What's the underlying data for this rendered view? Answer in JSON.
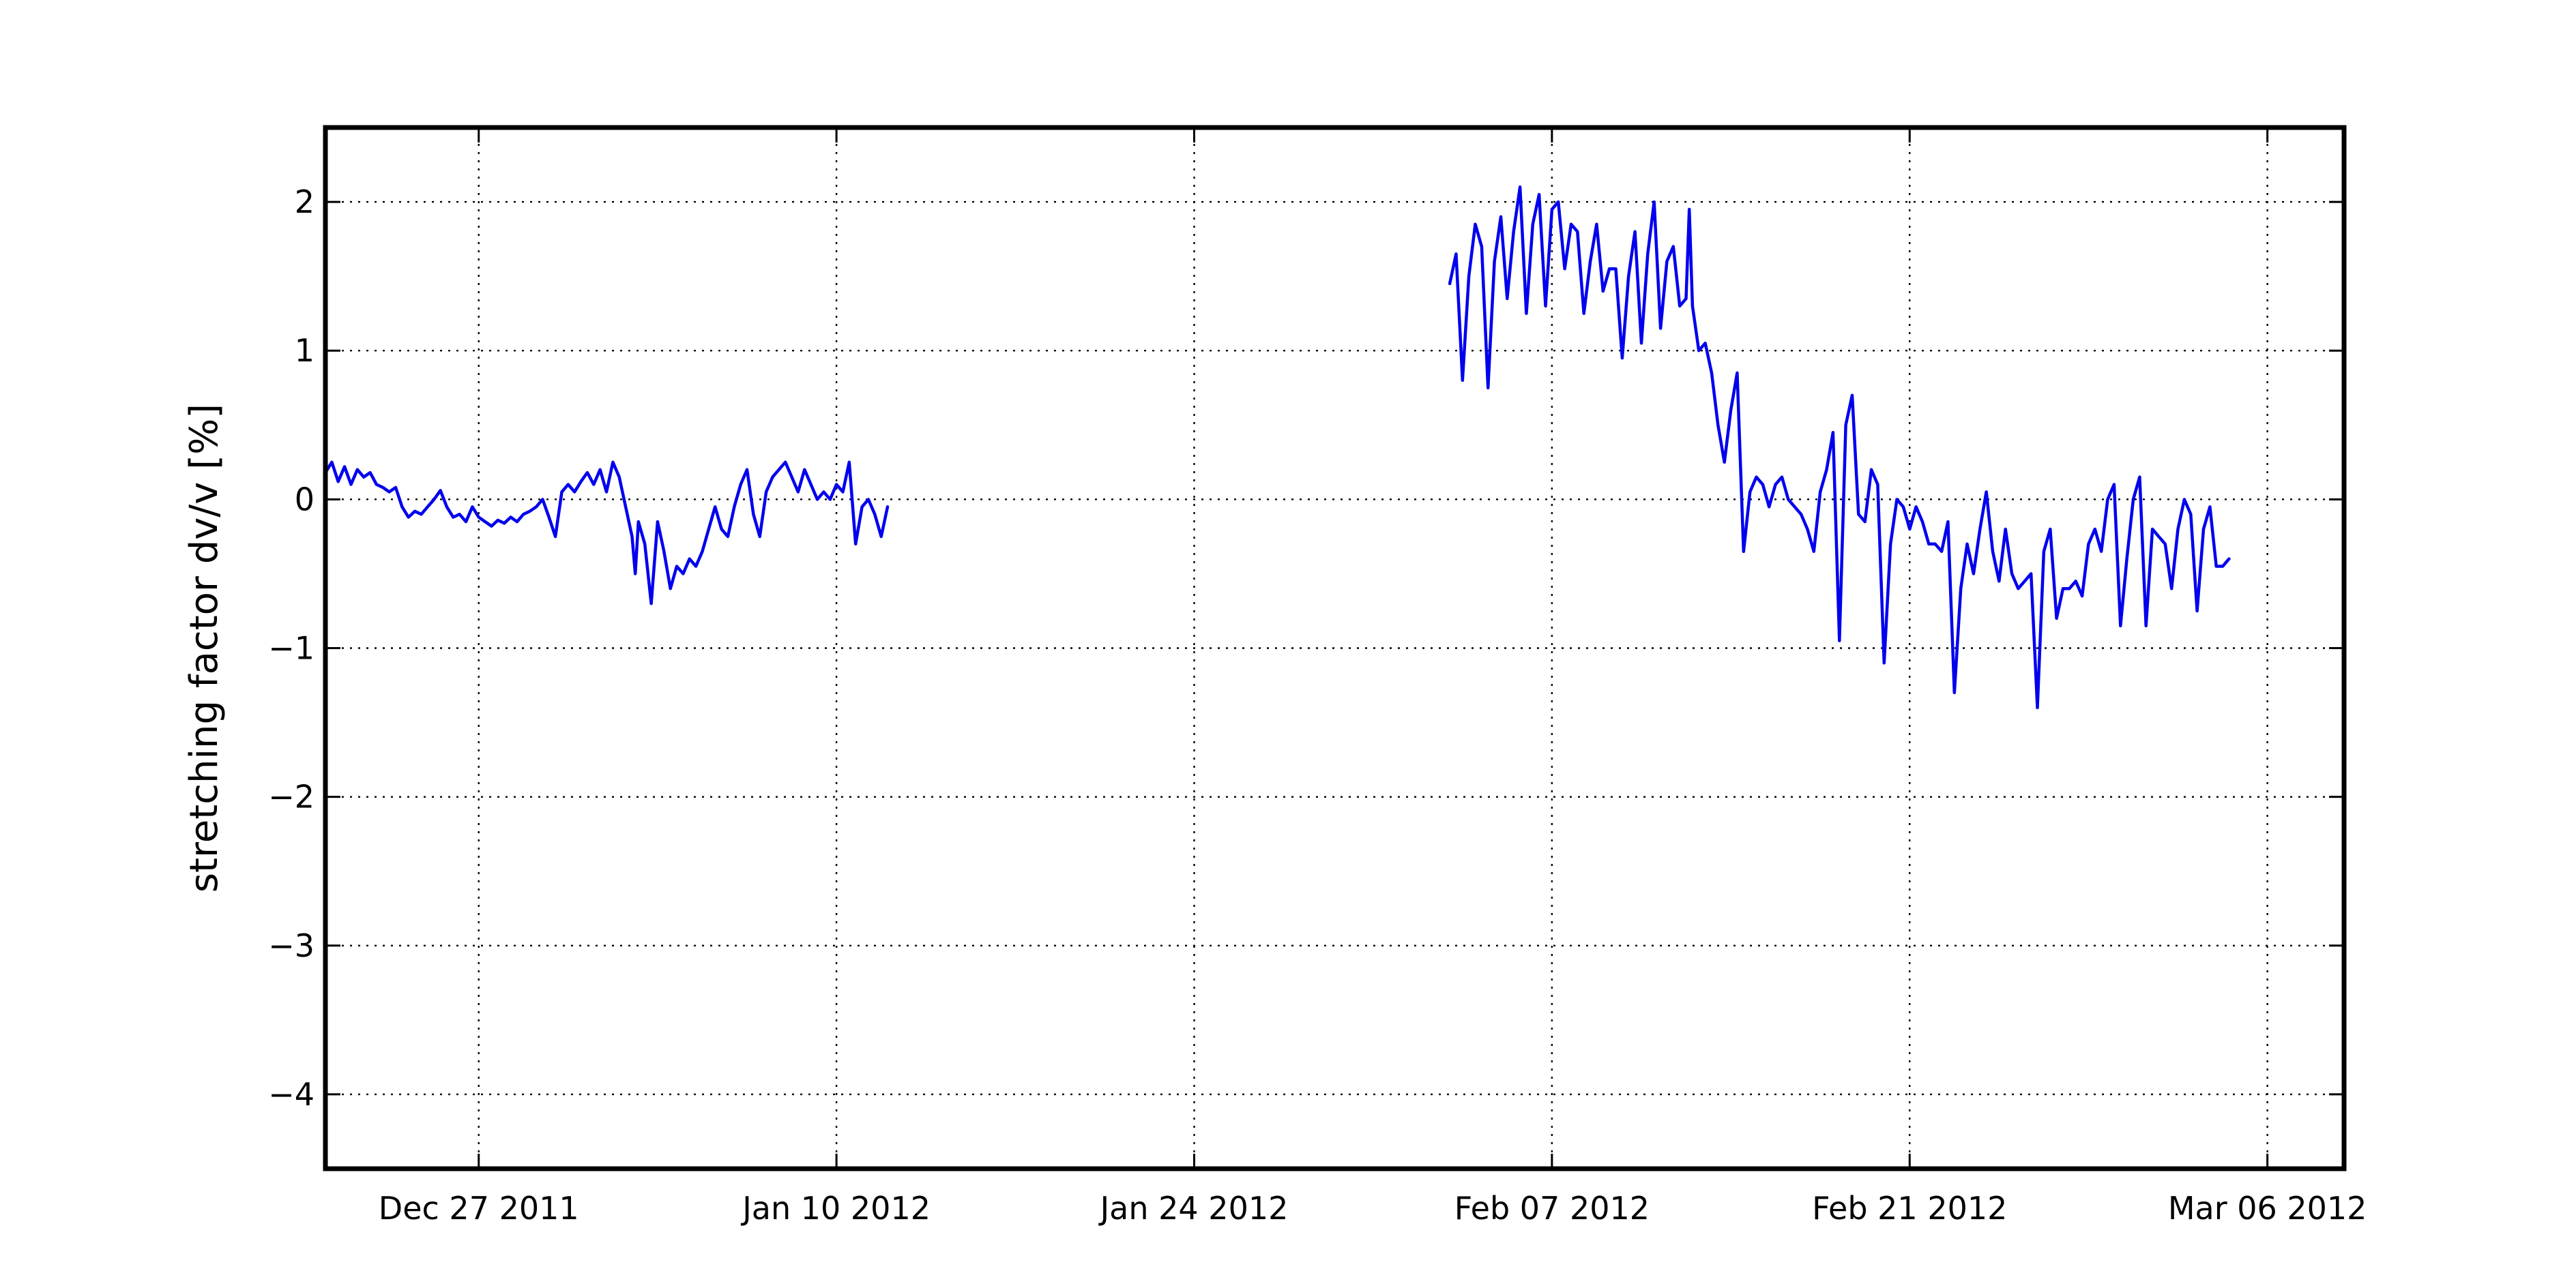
{
  "chart_data": {
    "type": "line",
    "title": "",
    "xlabel": "",
    "ylabel": "stretching factor dv/v [%]",
    "xlim": [
      "2011-12-21",
      "2012-03-09"
    ],
    "ylim": [
      -4.5,
      2.5
    ],
    "grid": true,
    "x_ticks": [
      {
        "date": "2011-12-27",
        "label": "Dec 27 2011"
      },
      {
        "date": "2012-01-10",
        "label": "Jan 10 2012"
      },
      {
        "date": "2012-01-24",
        "label": "Jan 24 2012"
      },
      {
        "date": "2012-02-07",
        "label": "Feb 07 2012"
      },
      {
        "date": "2012-02-21",
        "label": "Feb 21 2012"
      },
      {
        "date": "2012-03-06",
        "label": "Mar 06 2012"
      }
    ],
    "y_ticks": [
      {
        "value": 2,
        "label": "2"
      },
      {
        "value": 1,
        "label": "1"
      },
      {
        "value": 0,
        "label": "0"
      },
      {
        "value": -1,
        "label": "−1"
      },
      {
        "value": -2,
        "label": "−2"
      },
      {
        "value": -3,
        "label": "−3"
      },
      {
        "value": -4,
        "label": "−4"
      }
    ],
    "colors": {
      "series": "#0000ee",
      "frame": "#000000",
      "grid": "#000000"
    },
    "series": [
      {
        "segments": [
          [
            [
              "2011-12-21 00:00",
              0.18
            ],
            [
              "2011-12-21 06:00",
              0.25
            ],
            [
              "2011-12-21 12:00",
              0.12
            ],
            [
              "2011-12-21 18:00",
              0.22
            ],
            [
              "2011-12-22 00:00",
              0.1
            ],
            [
              "2011-12-22 06:00",
              0.2
            ],
            [
              "2011-12-22 12:00",
              0.15
            ],
            [
              "2011-12-22 18:00",
              0.18
            ],
            [
              "2011-12-23 00:00",
              0.1
            ],
            [
              "2011-12-23 06:00",
              0.08
            ],
            [
              "2011-12-23 12:00",
              0.05
            ],
            [
              "2011-12-23 18:00",
              0.08
            ],
            [
              "2011-12-24 00:00",
              -0.05
            ],
            [
              "2011-12-24 06:00",
              -0.12
            ],
            [
              "2011-12-24 12:00",
              -0.08
            ],
            [
              "2011-12-24 18:00",
              -0.1
            ],
            [
              "2011-12-25 00:00",
              -0.05
            ],
            [
              "2011-12-25 06:00",
              0.0
            ],
            [
              "2011-12-25 12:00",
              0.06
            ],
            [
              "2011-12-25 18:00",
              -0.05
            ],
            [
              "2011-12-26 00:00",
              -0.12
            ],
            [
              "2011-12-26 06:00",
              -0.1
            ],
            [
              "2011-12-26 12:00",
              -0.15
            ],
            [
              "2011-12-26 18:00",
              -0.05
            ],
            [
              "2011-12-27 00:00",
              -0.12
            ],
            [
              "2011-12-27 06:00",
              -0.15
            ],
            [
              "2011-12-27 12:00",
              -0.18
            ],
            [
              "2011-12-27 18:00",
              -0.14
            ],
            [
              "2011-12-28 00:00",
              -0.16
            ],
            [
              "2011-12-28 06:00",
              -0.12
            ],
            [
              "2011-12-28 12:00",
              -0.15
            ],
            [
              "2011-12-28 18:00",
              -0.1
            ],
            [
              "2011-12-29 00:00",
              -0.08
            ],
            [
              "2011-12-29 06:00",
              -0.05
            ],
            [
              "2011-12-29 12:00",
              0.0
            ],
            [
              "2011-12-29 18:00",
              -0.12
            ],
            [
              "2011-12-30 00:00",
              -0.25
            ],
            [
              "2011-12-30 06:00",
              0.05
            ],
            [
              "2011-12-30 12:00",
              0.1
            ],
            [
              "2011-12-30 18:00",
              0.05
            ],
            [
              "2011-12-31 00:00",
              0.12
            ],
            [
              "2011-12-31 06:00",
              0.18
            ],
            [
              "2011-12-31 12:00",
              0.1
            ],
            [
              "2011-12-31 18:00",
              0.2
            ],
            [
              "2012-01-01 00:00",
              0.05
            ],
            [
              "2012-01-01 06:00",
              0.25
            ],
            [
              "2012-01-01 12:00",
              0.15
            ],
            [
              "2012-01-01 18:00",
              -0.05
            ],
            [
              "2012-01-02 00:00",
              -0.25
            ],
            [
              "2012-01-02 03:00",
              -0.5
            ],
            [
              "2012-01-02 06:00",
              -0.15
            ],
            [
              "2012-01-02 12:00",
              -0.3
            ],
            [
              "2012-01-02 18:00",
              -0.7
            ],
            [
              "2012-01-03 00:00",
              -0.15
            ],
            [
              "2012-01-03 06:00",
              -0.35
            ],
            [
              "2012-01-03 12:00",
              -0.6
            ],
            [
              "2012-01-03 18:00",
              -0.45
            ],
            [
              "2012-01-04 00:00",
              -0.5
            ],
            [
              "2012-01-04 06:00",
              -0.4
            ],
            [
              "2012-01-04 12:00",
              -0.45
            ],
            [
              "2012-01-04 18:00",
              -0.35
            ],
            [
              "2012-01-05 00:00",
              -0.2
            ],
            [
              "2012-01-05 06:00",
              -0.05
            ],
            [
              "2012-01-05 12:00",
              -0.2
            ],
            [
              "2012-01-05 18:00",
              -0.25
            ],
            [
              "2012-01-06 00:00",
              -0.05
            ],
            [
              "2012-01-06 06:00",
              0.1
            ],
            [
              "2012-01-06 12:00",
              0.2
            ],
            [
              "2012-01-06 18:00",
              -0.1
            ],
            [
              "2012-01-07 00:00",
              -0.25
            ],
            [
              "2012-01-07 06:00",
              0.05
            ],
            [
              "2012-01-07 12:00",
              0.15
            ],
            [
              "2012-01-07 18:00",
              0.2
            ],
            [
              "2012-01-08 00:00",
              0.25
            ],
            [
              "2012-01-08 06:00",
              0.15
            ],
            [
              "2012-01-08 12:00",
              0.05
            ],
            [
              "2012-01-08 18:00",
              0.2
            ],
            [
              "2012-01-09 00:00",
              0.1
            ],
            [
              "2012-01-09 06:00",
              0.0
            ],
            [
              "2012-01-09 12:00",
              0.05
            ],
            [
              "2012-01-09 18:00",
              0.0
            ],
            [
              "2012-01-10 00:00",
              0.1
            ],
            [
              "2012-01-10 06:00",
              0.05
            ],
            [
              "2012-01-10 12:00",
              0.25
            ],
            [
              "2012-01-10 18:00",
              -0.3
            ],
            [
              "2012-01-11 00:00",
              -0.05
            ],
            [
              "2012-01-11 06:00",
              0.0
            ],
            [
              "2012-01-11 12:00",
              -0.1
            ],
            [
              "2012-01-11 18:00",
              -0.25
            ],
            [
              "2012-01-12 00:00",
              -0.05
            ]
          ],
          [
            [
              "2012-02-03 00:00",
              1.45
            ],
            [
              "2012-02-03 06:00",
              1.65
            ],
            [
              "2012-02-03 12:00",
              0.8
            ],
            [
              "2012-02-03 18:00",
              1.5
            ],
            [
              "2012-02-04 00:00",
              1.85
            ],
            [
              "2012-02-04 06:00",
              1.7
            ],
            [
              "2012-02-04 12:00",
              0.75
            ],
            [
              "2012-02-04 18:00",
              1.6
            ],
            [
              "2012-02-05 00:00",
              1.9
            ],
            [
              "2012-02-05 06:00",
              1.35
            ],
            [
              "2012-02-05 12:00",
              1.8
            ],
            [
              "2012-02-05 18:00",
              2.1
            ],
            [
              "2012-02-06 00:00",
              1.25
            ],
            [
              "2012-02-06 06:00",
              1.85
            ],
            [
              "2012-02-06 12:00",
              2.05
            ],
            [
              "2012-02-06 18:00",
              1.3
            ],
            [
              "2012-02-07 00:00",
              1.95
            ],
            [
              "2012-02-07 06:00",
              2.0
            ],
            [
              "2012-02-07 12:00",
              1.55
            ],
            [
              "2012-02-07 18:00",
              1.85
            ],
            [
              "2012-02-08 00:00",
              1.8
            ],
            [
              "2012-02-08 06:00",
              1.25
            ],
            [
              "2012-02-08 12:00",
              1.6
            ],
            [
              "2012-02-08 18:00",
              1.85
            ],
            [
              "2012-02-09 00:00",
              1.4
            ],
            [
              "2012-02-09 06:00",
              1.55
            ],
            [
              "2012-02-09 12:00",
              1.55
            ],
            [
              "2012-02-09 18:00",
              0.95
            ],
            [
              "2012-02-10 00:00",
              1.5
            ],
            [
              "2012-02-10 06:00",
              1.8
            ],
            [
              "2012-02-10 12:00",
              1.05
            ],
            [
              "2012-02-10 18:00",
              1.65
            ],
            [
              "2012-02-11 00:00",
              2.0
            ],
            [
              "2012-02-11 06:00",
              1.15
            ],
            [
              "2012-02-11 12:00",
              1.6
            ],
            [
              "2012-02-11 18:00",
              1.7
            ],
            [
              "2012-02-12 00:00",
              1.3
            ],
            [
              "2012-02-12 06:00",
              1.35
            ],
            [
              "2012-02-12 09:00",
              1.95
            ],
            [
              "2012-02-12 12:00",
              1.3
            ],
            [
              "2012-02-12 18:00",
              1.0
            ],
            [
              "2012-02-13 00:00",
              1.05
            ],
            [
              "2012-02-13 06:00",
              0.85
            ],
            [
              "2012-02-13 12:00",
              0.5
            ],
            [
              "2012-02-13 18:00",
              0.25
            ],
            [
              "2012-02-14 00:00",
              0.6
            ],
            [
              "2012-02-14 06:00",
              0.85
            ],
            [
              "2012-02-14 12:00",
              -0.35
            ],
            [
              "2012-02-14 18:00",
              0.05
            ],
            [
              "2012-02-15 00:00",
              0.15
            ],
            [
              "2012-02-15 06:00",
              0.1
            ],
            [
              "2012-02-15 12:00",
              -0.05
            ],
            [
              "2012-02-15 18:00",
              0.1
            ],
            [
              "2012-02-16 00:00",
              0.15
            ],
            [
              "2012-02-16 06:00",
              0.0
            ],
            [
              "2012-02-16 12:00",
              -0.05
            ],
            [
              "2012-02-16 18:00",
              -0.1
            ],
            [
              "2012-02-17 00:00",
              -0.2
            ],
            [
              "2012-02-17 06:00",
              -0.35
            ],
            [
              "2012-02-17 12:00",
              0.05
            ],
            [
              "2012-02-17 18:00",
              0.2
            ],
            [
              "2012-02-18 00:00",
              0.45
            ],
            [
              "2012-02-18 06:00",
              -0.95
            ],
            [
              "2012-02-18 12:00",
              0.5
            ],
            [
              "2012-02-18 18:00",
              0.7
            ],
            [
              "2012-02-19 00:00",
              -0.1
            ],
            [
              "2012-02-19 06:00",
              -0.15
            ],
            [
              "2012-02-19 12:00",
              0.2
            ],
            [
              "2012-02-19 18:00",
              0.1
            ],
            [
              "2012-02-20 00:00",
              -1.1
            ],
            [
              "2012-02-20 06:00",
              -0.3
            ],
            [
              "2012-02-20 12:00",
              0.0
            ],
            [
              "2012-02-20 18:00",
              -0.05
            ],
            [
              "2012-02-21 00:00",
              -0.2
            ],
            [
              "2012-02-21 06:00",
              -0.05
            ],
            [
              "2012-02-21 12:00",
              -0.15
            ],
            [
              "2012-02-21 18:00",
              -0.3
            ],
            [
              "2012-02-22 00:00",
              -0.3
            ],
            [
              "2012-02-22 06:00",
              -0.35
            ],
            [
              "2012-02-22 12:00",
              -0.15
            ],
            [
              "2012-02-22 18:00",
              -1.3
            ],
            [
              "2012-02-23 00:00",
              -0.6
            ],
            [
              "2012-02-23 06:00",
              -0.3
            ],
            [
              "2012-02-23 12:00",
              -0.5
            ],
            [
              "2012-02-23 18:00",
              -0.2
            ],
            [
              "2012-02-24 00:00",
              0.05
            ],
            [
              "2012-02-24 06:00",
              -0.35
            ],
            [
              "2012-02-24 12:00",
              -0.55
            ],
            [
              "2012-02-24 18:00",
              -0.2
            ],
            [
              "2012-02-25 00:00",
              -0.5
            ],
            [
              "2012-02-25 06:00",
              -0.6
            ],
            [
              "2012-02-25 12:00",
              -0.55
            ],
            [
              "2012-02-25 18:00",
              -0.5
            ],
            [
              "2012-02-26 00:00",
              -1.4
            ],
            [
              "2012-02-26 06:00",
              -0.35
            ],
            [
              "2012-02-26 12:00",
              -0.2
            ],
            [
              "2012-02-26 18:00",
              -0.8
            ],
            [
              "2012-02-27 00:00",
              -0.6
            ],
            [
              "2012-02-27 06:00",
              -0.6
            ],
            [
              "2012-02-27 12:00",
              -0.55
            ],
            [
              "2012-02-27 18:00",
              -0.65
            ],
            [
              "2012-02-28 00:00",
              -0.3
            ],
            [
              "2012-02-28 06:00",
              -0.2
            ],
            [
              "2012-02-28 12:00",
              -0.35
            ],
            [
              "2012-02-28 18:00",
              0.0
            ],
            [
              "2012-02-29 00:00",
              0.1
            ],
            [
              "2012-02-29 06:00",
              -0.85
            ],
            [
              "2012-02-29 12:00",
              -0.4
            ],
            [
              "2012-02-29 18:00",
              0.0
            ],
            [
              "2012-03-01 00:00",
              0.15
            ],
            [
              "2012-03-01 06:00",
              -0.85
            ],
            [
              "2012-03-01 12:00",
              -0.2
            ],
            [
              "2012-03-01 18:00",
              -0.25
            ],
            [
              "2012-03-02 00:00",
              -0.3
            ],
            [
              "2012-03-02 06:00",
              -0.6
            ],
            [
              "2012-03-02 12:00",
              -0.2
            ],
            [
              "2012-03-02 18:00",
              0.0
            ],
            [
              "2012-03-03 00:00",
              -0.1
            ],
            [
              "2012-03-03 06:00",
              -0.75
            ],
            [
              "2012-03-03 12:00",
              -0.2
            ],
            [
              "2012-03-03 18:00",
              -0.05
            ],
            [
              "2012-03-04 00:00",
              -0.45
            ],
            [
              "2012-03-04 06:00",
              -0.45
            ],
            [
              "2012-03-04 12:00",
              -0.4
            ]
          ]
        ]
      }
    ]
  }
}
